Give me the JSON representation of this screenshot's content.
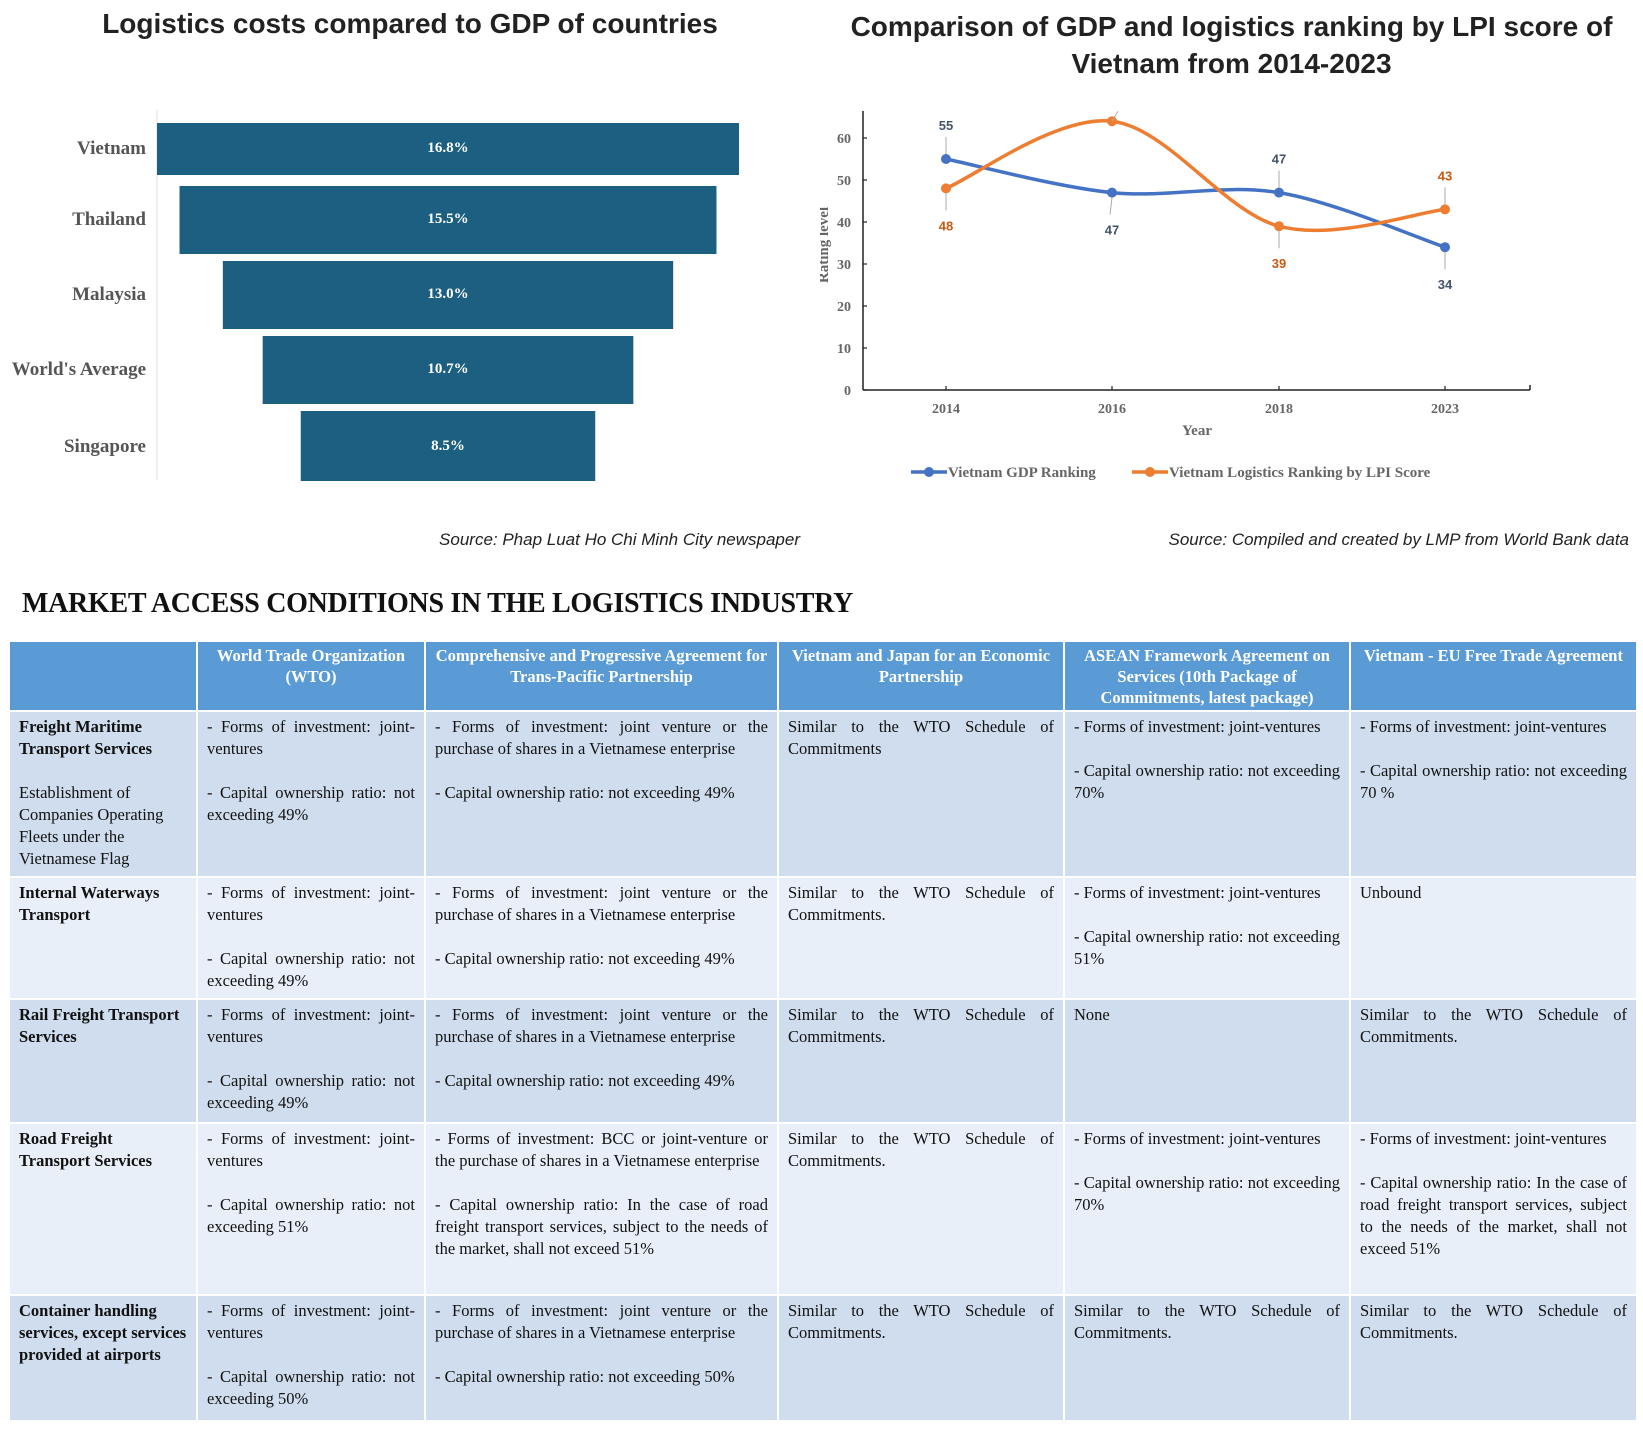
{
  "chart_data": [
    {
      "type": "bar",
      "subtype": "funnel",
      "title": "Logistics costs compared to GDP of countries",
      "categories": [
        "Vietnam",
        "Thailand",
        "Malaysia",
        "World's Average",
        "Singapore"
      ],
      "values": [
        16.8,
        15.5,
        13.0,
        10.7,
        8.5
      ],
      "value_labels": [
        "16.8%",
        "15.5%",
        "13.0%",
        "10.7%",
        "8.5%"
      ],
      "unit": "% of GDP",
      "color": "#1c5f80",
      "xlabel": "",
      "ylabel": "",
      "source": "Source: Phap Luat Ho Chi Minh City newspaper"
    },
    {
      "type": "line",
      "title": "Comparison of GDP and logistics ranking by LPI score of Vietnam from 2014-2023",
      "x": [
        "2014",
        "2016",
        "2018",
        "2023"
      ],
      "xlabel": "Year",
      "ylabel": "Rating level",
      "ylim": [
        0,
        66
      ],
      "yticks": [
        0,
        10,
        20,
        30,
        40,
        50,
        60
      ],
      "grid": false,
      "smooth": true,
      "legend": "bottom",
      "series": [
        {
          "name": "Vietnam GDP Ranking",
          "color": "#4472c4",
          "label_color": "#44546a",
          "values": [
            55,
            47,
            47,
            34
          ],
          "labels": [
            "55",
            "47",
            "47",
            "34"
          ],
          "label_pos": [
            "above",
            "below",
            "above",
            "below"
          ]
        },
        {
          "name": "Vietnam Logistics Ranking by LPI Score",
          "color": "#ed7d31",
          "label_color": "#c55a11",
          "values": [
            48,
            64,
            39,
            43
          ],
          "labels": [
            "48",
            "",
            "39",
            "43"
          ],
          "label_pos": [
            "below",
            "above",
            "below",
            "above"
          ]
        }
      ],
      "source": "Source: Compiled and created by LMP from World Bank data"
    }
  ],
  "table": {
    "title": "MARKET ACCESS CONDITIONS IN THE LOGISTICS INDUSTRY",
    "headers": [
      "",
      "World Trade Organization (WTO)",
      "Comprehensive and Progressive Agreement for Trans-Pacific Partnership",
      "Vietnam and Japan for an Economic Partnership",
      "ASEAN Framework Agreement on Services (10th Package of Commitments, latest package)",
      "Vietnam - EU Free Trade Agreement"
    ],
    "rows": [
      {
        "service": "Freight Maritime Transport Services",
        "service_sub": "Establishment of Companies Operating Fleets under the Vietnamese Flag",
        "cells": [
          [
            "- Forms of investment: joint-ventures",
            "- Capital ownership ratio: not exceeding 49%"
          ],
          [
            "- Forms of investment: joint venture or the purchase of shares in a Vietnamese enterprise",
            "- Capital ownership ratio: not exceeding 49%"
          ],
          [
            "Similar to the WTO Schedule of Commitments"
          ],
          [
            "- Forms of investment: joint-ventures",
            "- Capital ownership ratio: not exceeding 70%"
          ],
          [
            "- Forms of investment: joint-ventures",
            "- Capital ownership ratio: not exceeding 70 %"
          ]
        ]
      },
      {
        "service": "Internal Waterways Transport",
        "service_sub": "",
        "cells": [
          [
            "- Forms of investment: joint-ventures",
            "- Capital ownership ratio: not exceeding 49%"
          ],
          [
            "- Forms of investment: joint venture or the purchase of shares in a Vietnamese enterprise",
            "- Capital ownership ratio: not exceeding 49%"
          ],
          [
            "Similar to the WTO Schedule of Commitments."
          ],
          [
            "- Forms of investment: joint-ventures",
            "- Capital ownership ratio: not exceeding 51%"
          ],
          [
            "Unbound"
          ]
        ]
      },
      {
        "service": "Rail Freight Transport Services",
        "service_sub": "",
        "cells": [
          [
            "- Forms of investment: joint-ventures",
            "- Capital ownership ratio: not exceeding 49%"
          ],
          [
            "- Forms of investment: joint venture or the purchase of shares in a Vietnamese enterprise",
            "- Capital ownership ratio: not exceeding 49%"
          ],
          [
            "Similar to the WTO Schedule of Commitments."
          ],
          [
            "None"
          ],
          [
            "Similar to the WTO Schedule of Commitments."
          ]
        ]
      },
      {
        "service": "Road Freight Transport Services",
        "service_sub": "",
        "cells": [
          [
            "- Forms of investment: joint-ventures",
            "- Capital ownership ratio: not exceeding 51%"
          ],
          [
            "- Forms of investment: BCC or joint-venture or the purchase of shares in a Vietnamese enterprise",
            "- Capital ownership ratio: In the case of road freight transport services, subject to the needs of the market, shall not exceed 51%"
          ],
          [
            "Similar to the WTO Schedule of Commitments."
          ],
          [
            "- Forms of investment: joint-ventures",
            "- Capital ownership ratio: not exceeding 70%"
          ],
          [
            "- Forms of investment: joint-ventures",
            "- Capital ownership ratio: In the case of road freight transport services, subject to the needs of the market, shall not exceed 51%"
          ]
        ]
      },
      {
        "service": "Container handling services, except services provided at airports",
        "service_sub": "",
        "cells": [
          [
            "- Forms of investment: joint-ventures",
            "- Capital ownership ratio: not exceeding 50%"
          ],
          [
            "- Forms of investment: joint venture or the purchase of shares in a Vietnamese enterprise",
            "- Capital ownership ratio: not exceeding 50%"
          ],
          [
            "Similar to the WTO Schedule of Commitments."
          ],
          [
            "Similar to the WTO Schedule of Commitments."
          ],
          [
            "Similar to the WTO Schedule of Commitments."
          ]
        ]
      }
    ]
  }
}
